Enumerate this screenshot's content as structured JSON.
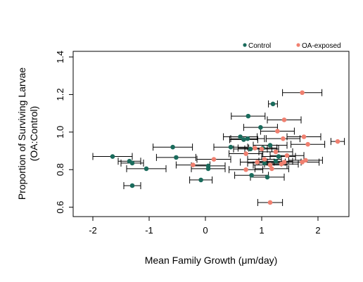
{
  "chart_data": {
    "type": "scatter",
    "xlabel": "Mean Family Growth (μm/day)",
    "ylabel_line1": "Proportion of Surviving Larvae",
    "ylabel_line2": "(OA:Control)",
    "xlim": [
      -2.35,
      2.55
    ],
    "ylim": [
      0.55,
      1.43
    ],
    "xticks": [
      -2,
      -1,
      0,
      1,
      2
    ],
    "yticks": [
      0.6,
      0.8,
      1.0,
      1.2,
      1.4
    ],
    "xtick_labels": [
      "-2",
      "-1",
      "0",
      "1",
      "2"
    ],
    "ytick_labels": [
      "0.6",
      "0.8",
      "1.0",
      "1.2",
      "1.4"
    ],
    "legend_position": "top-right",
    "error_bars": "horizontal",
    "series": [
      {
        "name": "Control",
        "color": "#1a6b5c",
        "points": [
          {
            "x": -1.65,
            "y": 0.87,
            "err": 0.35
          },
          {
            "x": -1.35,
            "y": 0.845,
            "err": 0.2
          },
          {
            "x": -1.3,
            "y": 0.835,
            "err": 0.2
          },
          {
            "x": -1.05,
            "y": 0.805,
            "err": 0.35
          },
          {
            "x": -1.3,
            "y": 0.715,
            "err": 0.15
          },
          {
            "x": -0.58,
            "y": 0.92,
            "err": 0.35
          },
          {
            "x": -0.52,
            "y": 0.865,
            "err": 0.35
          },
          {
            "x": -0.08,
            "y": 0.745,
            "err": 0.2
          },
          {
            "x": 0.05,
            "y": 0.805,
            "err": 0.3
          },
          {
            "x": 0.05,
            "y": 0.82,
            "err": 0.3
          },
          {
            "x": 0.45,
            "y": 0.92,
            "err": 0.3
          },
          {
            "x": 0.62,
            "y": 0.975,
            "err": 0.3
          },
          {
            "x": 0.68,
            "y": 0.96,
            "err": 0.25
          },
          {
            "x": 0.75,
            "y": 0.965,
            "err": 0.3
          },
          {
            "x": 0.76,
            "y": 1.085,
            "err": 0.3
          },
          {
            "x": 0.8,
            "y": 0.91,
            "err": 0.3
          },
          {
            "x": 0.82,
            "y": 0.77,
            "err": 0.3
          },
          {
            "x": 0.98,
            "y": 1.025,
            "err": 0.3
          },
          {
            "x": 1.02,
            "y": 0.915,
            "err": 0.25
          },
          {
            "x": 1.05,
            "y": 0.835,
            "err": 0.3
          },
          {
            "x": 1.1,
            "y": 0.76,
            "err": 0.3
          },
          {
            "x": 1.15,
            "y": 0.93,
            "err": 0.3
          },
          {
            "x": 1.2,
            "y": 1.15,
            "err": 0.08
          },
          {
            "x": 1.25,
            "y": 0.845,
            "err": 0.3
          },
          {
            "x": 1.3,
            "y": 0.87,
            "err": 0.3
          }
        ]
      },
      {
        "name": "OA-exposed",
        "color": "#f08070",
        "points": [
          {
            "x": -0.22,
            "y": 0.825,
            "err": 0.3
          },
          {
            "x": 0.15,
            "y": 0.855,
            "err": 0.3
          },
          {
            "x": 0.72,
            "y": 0.885,
            "err": 0.3
          },
          {
            "x": 0.72,
            "y": 0.8,
            "err": 0.3
          },
          {
            "x": 0.88,
            "y": 0.915,
            "err": 0.3
          },
          {
            "x": 0.92,
            "y": 0.84,
            "err": 0.3
          },
          {
            "x": 1.0,
            "y": 0.91,
            "err": 0.3
          },
          {
            "x": 1.05,
            "y": 0.855,
            "err": 0.3
          },
          {
            "x": 1.15,
            "y": 0.825,
            "err": 0.3
          },
          {
            "x": 1.18,
            "y": 0.805,
            "err": 0.3
          },
          {
            "x": 1.25,
            "y": 0.895,
            "err": 0.3
          },
          {
            "x": 1.28,
            "y": 1.005,
            "err": 0.3
          },
          {
            "x": 1.35,
            "y": 0.83,
            "err": 0.3
          },
          {
            "x": 1.38,
            "y": 0.965,
            "err": 0.3
          },
          {
            "x": 1.4,
            "y": 1.065,
            "err": 0.3
          },
          {
            "x": 1.4,
            "y": 0.84,
            "err": 0.3
          },
          {
            "x": 1.45,
            "y": 0.875,
            "err": 0.3
          },
          {
            "x": 1.72,
            "y": 0.84,
            "err": 0.3
          },
          {
            "x": 1.75,
            "y": 0.975,
            "err": 0.3
          },
          {
            "x": 1.78,
            "y": 0.85,
            "err": 0.3
          },
          {
            "x": 1.82,
            "y": 0.935,
            "err": 0.3
          },
          {
            "x": 1.72,
            "y": 1.21,
            "err": 0.35
          },
          {
            "x": 2.35,
            "y": 0.95,
            "err": 0.12
          },
          {
            "x": 1.15,
            "y": 0.625,
            "err": 0.22
          }
        ]
      }
    ]
  }
}
